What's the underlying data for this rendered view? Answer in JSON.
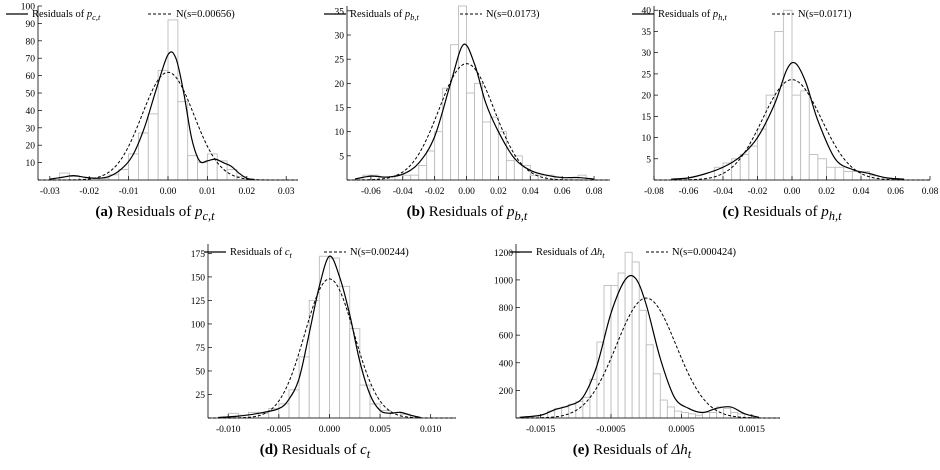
{
  "chart_data": [
    {
      "type": "histogram-density",
      "caption": {
        "letter": "(a)",
        "text": "Residuals of ",
        "symbol": "p",
        "sub": "c,t"
      },
      "legend": {
        "solid": {
          "text": "Residuals of ",
          "symbol": "p",
          "sub": "c,t"
        },
        "dashed": "N(s=0.00656)"
      },
      "legend_position": "top",
      "xlim": [
        -0.033,
        0.033
      ],
      "ylim": [
        0,
        100
      ],
      "xticks": [
        "-0.03",
        "-0.02",
        "-0.01",
        "0.00",
        "0.01",
        "0.02",
        "0.03"
      ],
      "yticks": [
        "10",
        "20",
        "30",
        "40",
        "50",
        "60",
        "70",
        "80",
        "90",
        "100"
      ],
      "std": 0.00656,
      "bins": [
        {
          "x": -0.02625,
          "w": 0.0025,
          "v": 4
        },
        {
          "x": -0.02375,
          "w": 0.0025,
          "v": 2
        },
        {
          "x": -0.01625,
          "w": 0.0025,
          "v": 1
        },
        {
          "x": -0.01375,
          "w": 0.0025,
          "v": 3
        },
        {
          "x": -0.01125,
          "w": 0.0025,
          "v": 6
        },
        {
          "x": -0.00875,
          "w": 0.0025,
          "v": 15
        },
        {
          "x": -0.00625,
          "w": 0.0025,
          "v": 27
        },
        {
          "x": -0.00375,
          "w": 0.0025,
          "v": 38
        },
        {
          "x": -0.00125,
          "w": 0.0025,
          "v": 63
        },
        {
          "x": 0.00125,
          "w": 0.0025,
          "v": 92
        },
        {
          "x": 0.00375,
          "w": 0.0025,
          "v": 45
        },
        {
          "x": 0.00625,
          "w": 0.0025,
          "v": 14
        },
        {
          "x": 0.00875,
          "w": 0.0025,
          "v": 10
        },
        {
          "x": 0.01125,
          "w": 0.0025,
          "v": 15
        },
        {
          "x": 0.01375,
          "w": 0.0025,
          "v": 11
        },
        {
          "x": 0.01625,
          "w": 0.0025,
          "v": 6
        },
        {
          "x": 0.01875,
          "w": 0.0025,
          "v": 2
        }
      ],
      "density": {
        "x": [
          -0.03,
          -0.027,
          -0.024,
          -0.021,
          -0.018,
          -0.015,
          -0.012,
          -0.009,
          -0.006,
          -0.003,
          0.0,
          0.002,
          0.004,
          0.006,
          0.008,
          0.01,
          0.012,
          0.014,
          0.016,
          0.018,
          0.02,
          0.022
        ],
        "y": [
          0.5,
          1.5,
          2.5,
          1.5,
          1,
          2,
          6,
          14,
          30,
          52,
          72,
          70,
          50,
          24,
          11,
          11,
          12,
          10,
          8,
          4,
          1,
          0.3
        ]
      }
    },
    {
      "type": "histogram-density",
      "caption": {
        "letter": "(b)",
        "text": "Residuals of ",
        "symbol": "p",
        "sub": "b,t"
      },
      "legend": {
        "solid": {
          "text": "Residuals of ",
          "symbol": "p",
          "sub": "b,t"
        },
        "dashed": "N(s=0.0173)"
      },
      "legend_position": "top",
      "xlim": [
        -0.075,
        0.09
      ],
      "ylim": [
        0,
        36
      ],
      "xticks": [
        "-0.06",
        "-0.04",
        "-0.02",
        "0.00",
        "0.02",
        "0.04",
        "0.06",
        "0.08"
      ],
      "yticks": [
        "5",
        "10",
        "15",
        "20",
        "25",
        "30",
        "35"
      ],
      "std": 0.0173,
      "bins": [
        {
          "x": -0.0625,
          "w": 0.005,
          "v": 1
        },
        {
          "x": -0.0575,
          "w": 0.005,
          "v": 1
        },
        {
          "x": -0.0425,
          "w": 0.005,
          "v": 1
        },
        {
          "x": -0.0375,
          "w": 0.005,
          "v": 1
        },
        {
          "x": -0.0325,
          "w": 0.005,
          "v": 1
        },
        {
          "x": -0.0275,
          "w": 0.005,
          "v": 3
        },
        {
          "x": -0.0225,
          "w": 0.005,
          "v": 6
        },
        {
          "x": -0.0175,
          "w": 0.005,
          "v": 10
        },
        {
          "x": -0.0125,
          "w": 0.005,
          "v": 19
        },
        {
          "x": -0.0075,
          "w": 0.005,
          "v": 28
        },
        {
          "x": -0.0025,
          "w": 0.005,
          "v": 36
        },
        {
          "x": 0.0025,
          "w": 0.005,
          "v": 18
        },
        {
          "x": 0.0075,
          "w": 0.005,
          "v": 20
        },
        {
          "x": 0.0125,
          "w": 0.005,
          "v": 12
        },
        {
          "x": 0.0175,
          "w": 0.005,
          "v": 13
        },
        {
          "x": 0.0225,
          "w": 0.005,
          "v": 10
        },
        {
          "x": 0.0275,
          "w": 0.005,
          "v": 4
        },
        {
          "x": 0.0325,
          "w": 0.005,
          "v": 5
        },
        {
          "x": 0.0375,
          "w": 0.005,
          "v": 3
        },
        {
          "x": 0.0425,
          "w": 0.005,
          "v": 1
        },
        {
          "x": 0.0475,
          "w": 0.005,
          "v": 1
        },
        {
          "x": 0.0525,
          "w": 0.005,
          "v": 1
        },
        {
          "x": 0.0725,
          "w": 0.005,
          "v": 1
        }
      ],
      "density": {
        "x": [
          -0.07,
          -0.06,
          -0.05,
          -0.04,
          -0.03,
          -0.02,
          -0.01,
          -0.002,
          0.005,
          0.012,
          0.02,
          0.03,
          0.04,
          0.05,
          0.06,
          0.07,
          0.08
        ],
        "y": [
          0.2,
          0.8,
          0.6,
          1.2,
          3.5,
          9,
          20,
          28,
          24,
          16,
          10,
          4.5,
          2,
          1,
          0.5,
          0.5,
          0.2
        ]
      }
    },
    {
      "type": "histogram-density",
      "caption": {
        "letter": "(c)",
        "text": "Residuals of ",
        "symbol": "p",
        "sub": "h,t"
      },
      "legend": {
        "solid": {
          "text": "Residuals of ",
          "symbol": "p",
          "sub": "h,t"
        },
        "dashed": "N(s=0.0171)"
      },
      "legend_position": "top",
      "xlim": [
        -0.08,
        0.08
      ],
      "ylim": [
        0,
        41
      ],
      "xticks": [
        "-0.08",
        "-0.06",
        "-0.04",
        "-0.02",
        "0.00",
        "0.02",
        "0.04",
        "0.06",
        "0.08"
      ],
      "yticks": [
        "5",
        "10",
        "15",
        "20",
        "25",
        "30",
        "35",
        "40"
      ],
      "std": 0.0171,
      "bins": [
        {
          "x": -0.0425,
          "w": 0.005,
          "v": 3
        },
        {
          "x": -0.0375,
          "w": 0.005,
          "v": 4
        },
        {
          "x": -0.0325,
          "w": 0.005,
          "v": 5
        },
        {
          "x": -0.0275,
          "w": 0.005,
          "v": 6
        },
        {
          "x": -0.0225,
          "w": 0.005,
          "v": 8
        },
        {
          "x": -0.0175,
          "w": 0.005,
          "v": 12
        },
        {
          "x": -0.0125,
          "w": 0.005,
          "v": 20
        },
        {
          "x": -0.0075,
          "w": 0.005,
          "v": 35
        },
        {
          "x": -0.0025,
          "w": 0.005,
          "v": 40
        },
        {
          "x": 0.0025,
          "w": 0.005,
          "v": 20
        },
        {
          "x": 0.0075,
          "w": 0.005,
          "v": 21
        },
        {
          "x": 0.0125,
          "w": 0.005,
          "v": 6
        },
        {
          "x": 0.0175,
          "w": 0.005,
          "v": 5
        },
        {
          "x": 0.0225,
          "w": 0.005,
          "v": 3
        },
        {
          "x": 0.0275,
          "w": 0.005,
          "v": 3
        },
        {
          "x": 0.0325,
          "w": 0.005,
          "v": 2
        },
        {
          "x": 0.0375,
          "w": 0.005,
          "v": 2
        },
        {
          "x": 0.0425,
          "w": 0.005,
          "v": 2
        },
        {
          "x": 0.0475,
          "w": 0.005,
          "v": 1
        }
      ],
      "density": {
        "x": [
          -0.07,
          -0.06,
          -0.05,
          -0.04,
          -0.03,
          -0.02,
          -0.01,
          -0.003,
          0.002,
          0.008,
          0.015,
          0.025,
          0.035,
          0.045,
          0.055,
          0.065
        ],
        "y": [
          0.2,
          0.5,
          1.5,
          3,
          5.5,
          10,
          18,
          26,
          27.5,
          23,
          14,
          5,
          2.5,
          1.5,
          0.5,
          0.2
        ]
      }
    },
    {
      "type": "histogram-density",
      "caption": {
        "letter": "(d)",
        "text": "Residuals of ",
        "symbol": "c",
        "sub": "t"
      },
      "legend": {
        "solid": {
          "text": "Residuals of ",
          "symbol": "c",
          "sub": "t"
        },
        "dashed": "N(s=0.00244)"
      },
      "legend_position": "top",
      "xlim": [
        -0.012,
        0.0125
      ],
      "ylim": [
        0,
        185
      ],
      "xticks": [
        "-0.010",
        "-0.005",
        "0.000",
        "0.005",
        "0.010"
      ],
      "yticks": [
        "25",
        "50",
        "75",
        "100",
        "125",
        "150",
        "175"
      ],
      "std": 0.00244,
      "bins": [
        {
          "x": -0.0095,
          "w": 0.001,
          "v": 5
        },
        {
          "x": -0.0085,
          "w": 0.001,
          "v": 3
        },
        {
          "x": -0.0075,
          "w": 0.001,
          "v": 6
        },
        {
          "x": -0.0065,
          "w": 0.001,
          "v": 5
        },
        {
          "x": -0.0055,
          "w": 0.001,
          "v": 10
        },
        {
          "x": -0.0045,
          "w": 0.001,
          "v": 15
        },
        {
          "x": -0.0035,
          "w": 0.001,
          "v": 30
        },
        {
          "x": -0.0025,
          "w": 0.001,
          "v": 65
        },
        {
          "x": -0.0015,
          "w": 0.001,
          "v": 125
        },
        {
          "x": -0.0005,
          "w": 0.001,
          "v": 172
        },
        {
          "x": 0.0005,
          "w": 0.001,
          "v": 170
        },
        {
          "x": 0.0015,
          "w": 0.001,
          "v": 140
        },
        {
          "x": 0.0025,
          "w": 0.001,
          "v": 95
        },
        {
          "x": 0.0035,
          "w": 0.001,
          "v": 35
        },
        {
          "x": 0.0045,
          "w": 0.001,
          "v": 15
        },
        {
          "x": 0.0055,
          "w": 0.001,
          "v": 8
        },
        {
          "x": 0.0065,
          "w": 0.001,
          "v": 6
        },
        {
          "x": 0.0075,
          "w": 0.001,
          "v": 4
        }
      ],
      "density": {
        "x": [
          -0.011,
          -0.009,
          -0.007,
          -0.005,
          -0.004,
          -0.003,
          -0.002,
          -0.001,
          0.0,
          0.001,
          0.002,
          0.003,
          0.004,
          0.005,
          0.006,
          0.007,
          0.008,
          0.009
        ],
        "y": [
          0.5,
          2,
          5,
          10,
          20,
          42,
          90,
          140,
          172,
          150,
          110,
          60,
          25,
          8,
          5,
          6,
          3,
          0.5
        ]
      }
    },
    {
      "type": "histogram-density",
      "caption": {
        "letter": "(e)",
        "text": "Residuals of ",
        "symbol": "Δh",
        "sub": "t"
      },
      "legend": {
        "solid": {
          "text": "Residuals of ",
          "symbol": "Δh",
          "sub": "t"
        },
        "dashed": "N(s=0.000424)"
      },
      "legend_position": "top",
      "xlim": [
        -0.00185,
        0.0019
      ],
      "ylim": [
        0,
        1260
      ],
      "xticks": [
        "-0.0015",
        "-0.0005",
        "0.0005",
        "0.0015"
      ],
      "yticks": [
        "200",
        "400",
        "600",
        "800",
        "1000",
        "1200"
      ],
      "std": 0.000424,
      "bins": [
        {
          "x": -0.00135,
          "w": 0.0001,
          "v": 50
        },
        {
          "x": -0.00125,
          "w": 0.0001,
          "v": 70
        },
        {
          "x": -0.00115,
          "w": 0.0001,
          "v": 80
        },
        {
          "x": -0.00105,
          "w": 0.0001,
          "v": 100
        },
        {
          "x": -0.00095,
          "w": 0.0001,
          "v": 120
        },
        {
          "x": -0.00085,
          "w": 0.0001,
          "v": 150
        },
        {
          "x": -0.00075,
          "w": 0.0001,
          "v": 280
        },
        {
          "x": -0.00065,
          "w": 0.0001,
          "v": 550
        },
        {
          "x": -0.00055,
          "w": 0.0001,
          "v": 960
        },
        {
          "x": -0.00045,
          "w": 0.0001,
          "v": 960
        },
        {
          "x": -0.00035,
          "w": 0.0001,
          "v": 1050
        },
        {
          "x": -0.00025,
          "w": 0.0001,
          "v": 1200
        },
        {
          "x": -0.00015,
          "w": 0.0001,
          "v": 1130
        },
        {
          "x": -5e-05,
          "w": 0.0001,
          "v": 780
        },
        {
          "x": 5e-05,
          "w": 0.0001,
          "v": 530
        },
        {
          "x": 0.00015,
          "w": 0.0001,
          "v": 320
        },
        {
          "x": 0.00025,
          "w": 0.0001,
          "v": 130
        },
        {
          "x": 0.00035,
          "w": 0.0001,
          "v": 80
        },
        {
          "x": 0.00045,
          "w": 0.0001,
          "v": 50
        },
        {
          "x": 0.00055,
          "w": 0.0001,
          "v": 40
        },
        {
          "x": 0.00065,
          "w": 0.0001,
          "v": 30
        },
        {
          "x": 0.00075,
          "w": 0.0001,
          "v": 20
        },
        {
          "x": 0.00085,
          "w": 0.0001,
          "v": 40
        },
        {
          "x": 0.00095,
          "w": 0.0001,
          "v": 40
        },
        {
          "x": 0.00105,
          "w": 0.0001,
          "v": 80
        },
        {
          "x": 0.00115,
          "w": 0.0001,
          "v": 70
        },
        {
          "x": 0.00125,
          "w": 0.0001,
          "v": 40
        },
        {
          "x": 0.00135,
          "w": 0.0001,
          "v": 30
        }
      ],
      "density": {
        "x": [
          -0.0018,
          -0.0015,
          -0.0013,
          -0.0011,
          -0.0009,
          -0.0007,
          -0.0005,
          -0.0003,
          -0.00015,
          0.0,
          0.0002,
          0.0004,
          0.0006,
          0.0008,
          0.001,
          0.0012,
          0.0014,
          0.0016
        ],
        "y": [
          5,
          20,
          60,
          90,
          150,
          380,
          760,
          1000,
          1010,
          820,
          430,
          150,
          70,
          40,
          70,
          80,
          30,
          5
        ]
      }
    }
  ]
}
